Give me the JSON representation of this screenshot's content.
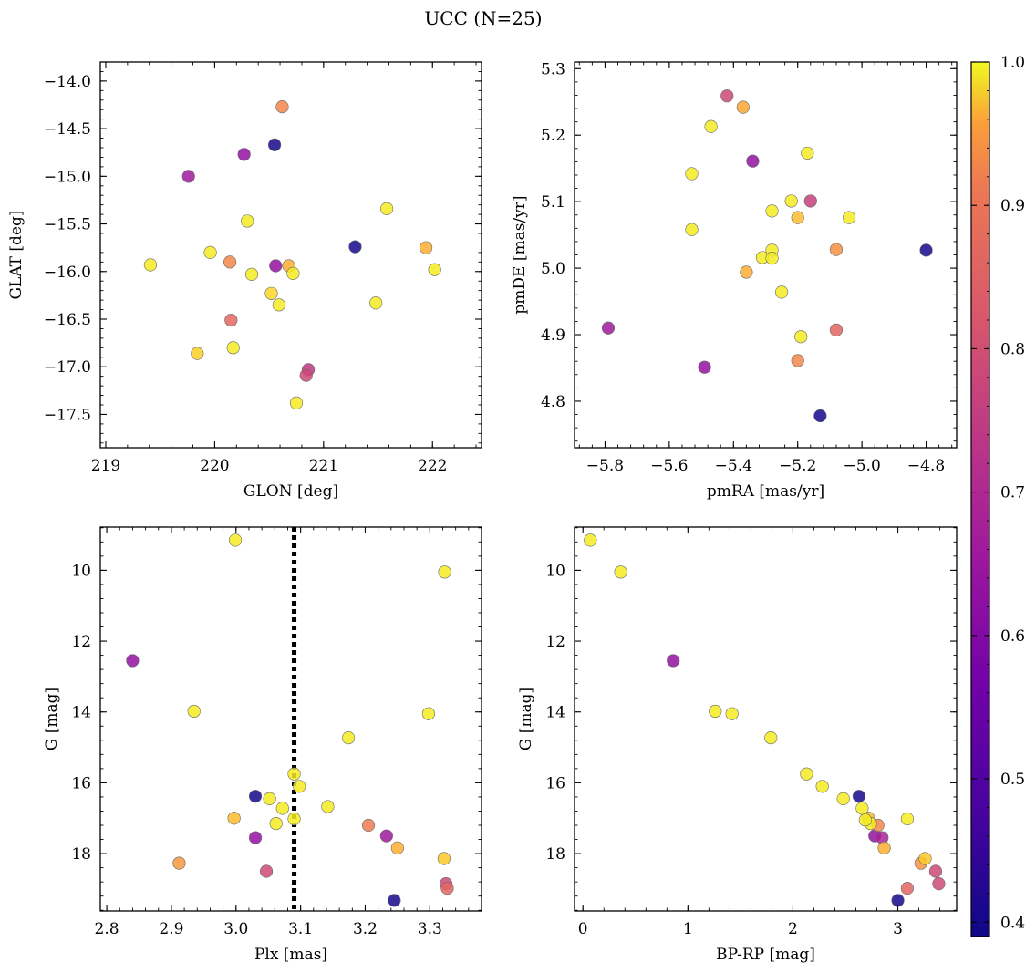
{
  "figure": {
    "title": "UCC (N=25)"
  },
  "colorbar": {
    "cmap": "plasma",
    "range": [
      0.39,
      1.0
    ],
    "ticks": [
      0.4,
      0.5,
      0.6,
      0.7,
      0.8,
      0.9,
      1.0
    ],
    "tick_labels": [
      "0.4",
      "0.5",
      "0.6",
      "0.7",
      "0.8",
      "0.9",
      "1.0"
    ]
  },
  "chart_data": [
    {
      "type": "scatter",
      "id": "glon-glat",
      "xlabel": "GLON [deg]",
      "ylabel": "GLAT [deg]",
      "xlim": [
        218.95,
        222.45
      ],
      "ylim": [
        -17.85,
        -13.8
      ],
      "xticks": [
        219,
        220,
        221,
        222
      ],
      "xtick_labels": [
        "219",
        "220",
        "221",
        "222"
      ],
      "yticks": [
        -14.0,
        -14.5,
        -15.0,
        -15.5,
        -16.0,
        -16.5,
        -17.0,
        -17.5
      ],
      "ytick_labels": [
        "−14.0",
        "−14.5",
        "−15.0",
        "−15.5",
        "−16.0",
        "−16.5",
        "−17.0",
        "−17.5"
      ],
      "points": [
        {
          "x": 220.55,
          "y": -14.67,
          "c": 0.4
        },
        {
          "x": 221.29,
          "y": -15.74,
          "c": 0.4
        },
        {
          "x": 220.27,
          "y": -14.77,
          "c": 0.58
        },
        {
          "x": 219.76,
          "y": -15.0,
          "c": 0.6
        },
        {
          "x": 220.56,
          "y": -15.94,
          "c": 0.58
        },
        {
          "x": 220.86,
          "y": -17.03,
          "c": 0.66
        },
        {
          "x": 220.84,
          "y": -17.09,
          "c": 0.7
        },
        {
          "x": 220.15,
          "y": -16.51,
          "c": 0.76
        },
        {
          "x": 220.62,
          "y": -14.27,
          "c": 0.82
        },
        {
          "x": 220.14,
          "y": -15.9,
          "c": 0.82
        },
        {
          "x": 220.68,
          "y": -15.94,
          "c": 0.89
        },
        {
          "x": 221.94,
          "y": -15.75,
          "c": 0.89
        },
        {
          "x": 219.84,
          "y": -16.86,
          "c": 0.94
        },
        {
          "x": 220.52,
          "y": -16.23,
          "c": 0.95
        },
        {
          "x": 219.41,
          "y": -15.93,
          "c": 0.98
        },
        {
          "x": 220.17,
          "y": -16.8,
          "c": 0.98
        },
        {
          "x": 220.3,
          "y": -15.47,
          "c": 0.98
        },
        {
          "x": 221.58,
          "y": -15.34,
          "c": 0.98
        },
        {
          "x": 221.48,
          "y": -16.33,
          "c": 0.98
        },
        {
          "x": 219.96,
          "y": -15.8,
          "c": 0.98
        },
        {
          "x": 220.34,
          "y": -16.03,
          "c": 0.98
        },
        {
          "x": 220.72,
          "y": -16.02,
          "c": 0.98
        },
        {
          "x": 220.59,
          "y": -16.35,
          "c": 0.98
        },
        {
          "x": 220.75,
          "y": -17.38,
          "c": 0.98
        },
        {
          "x": 222.02,
          "y": -15.98,
          "c": 0.98
        }
      ]
    },
    {
      "type": "scatter",
      "id": "pmra-pmde",
      "xlabel": "pmRA [mas/yr]",
      "ylabel": "pmDE [mas/yr]",
      "xlim": [
        -5.895,
        -4.705
      ],
      "ylim": [
        4.73,
        5.31
      ],
      "xticks": [
        -5.8,
        -5.6,
        -5.4,
        -5.2,
        -5.0,
        -4.8
      ],
      "xtick_labels": [
        "−5.8",
        "−5.6",
        "−5.4",
        "−5.2",
        "−5.0",
        "−4.8"
      ],
      "yticks": [
        4.8,
        4.9,
        5.0,
        5.1,
        5.2,
        5.3
      ],
      "ytick_labels": [
        "4.8",
        "4.9",
        "5.0",
        "5.1",
        "5.2",
        "5.3"
      ],
      "points": [
        {
          "x": -5.13,
          "y": 4.778,
          "c": 0.4
        },
        {
          "x": -4.8,
          "y": 5.027,
          "c": 0.4
        },
        {
          "x": -5.34,
          "y": 5.161,
          "c": 0.58
        },
        {
          "x": -5.79,
          "y": 4.91,
          "c": 0.6
        },
        {
          "x": -5.49,
          "y": 4.851,
          "c": 0.58
        },
        {
          "x": -5.16,
          "y": 5.101,
          "c": 0.68
        },
        {
          "x": -5.42,
          "y": 5.259,
          "c": 0.7
        },
        {
          "x": -5.08,
          "y": 4.907,
          "c": 0.76
        },
        {
          "x": -5.2,
          "y": 4.861,
          "c": 0.82
        },
        {
          "x": -5.08,
          "y": 5.028,
          "c": 0.84
        },
        {
          "x": -5.37,
          "y": 5.242,
          "c": 0.88
        },
        {
          "x": -5.36,
          "y": 4.994,
          "c": 0.89
        },
        {
          "x": -5.2,
          "y": 5.076,
          "c": 0.91
        },
        {
          "x": -5.47,
          "y": 5.213,
          "c": 0.98
        },
        {
          "x": -5.53,
          "y": 5.142,
          "c": 0.98
        },
        {
          "x": -5.53,
          "y": 5.058,
          "c": 0.98
        },
        {
          "x": -5.17,
          "y": 5.173,
          "c": 0.98
        },
        {
          "x": -5.22,
          "y": 5.101,
          "c": 0.98
        },
        {
          "x": -5.28,
          "y": 5.086,
          "c": 0.98
        },
        {
          "x": -5.04,
          "y": 5.076,
          "c": 0.98
        },
        {
          "x": -5.28,
          "y": 5.027,
          "c": 0.98
        },
        {
          "x": -5.31,
          "y": 5.016,
          "c": 0.98
        },
        {
          "x": -5.28,
          "y": 5.015,
          "c": 0.98
        },
        {
          "x": -5.25,
          "y": 4.964,
          "c": 0.98
        },
        {
          "x": -5.19,
          "y": 4.897,
          "c": 0.98
        }
      ]
    },
    {
      "type": "scatter",
      "id": "plx-g",
      "xlabel": "Plx [mas]",
      "ylabel": "G [mag]",
      "xlim": [
        2.79,
        3.38
      ],
      "ylim": [
        19.62,
        8.78
      ],
      "xticks": [
        2.8,
        2.9,
        3.0,
        3.1,
        3.2,
        3.3
      ],
      "xtick_labels": [
        "2.8",
        "2.9",
        "3.0",
        "3.1",
        "3.2",
        "3.3"
      ],
      "yticks": [
        10,
        12,
        14,
        16,
        18
      ],
      "ytick_labels": [
        "10",
        "12",
        "14",
        "16",
        "18"
      ],
      "vline": 3.09,
      "points": [
        {
          "x": 3.03,
          "y": 16.38,
          "c": 0.4
        },
        {
          "x": 3.245,
          "y": 19.32,
          "c": 0.4
        },
        {
          "x": 2.84,
          "y": 12.55,
          "c": 0.58
        },
        {
          "x": 3.03,
          "y": 17.55,
          "c": 0.58
        },
        {
          "x": 3.233,
          "y": 17.5,
          "c": 0.6
        },
        {
          "x": 3.047,
          "y": 18.5,
          "c": 0.7
        },
        {
          "x": 3.325,
          "y": 18.85,
          "c": 0.7
        },
        {
          "x": 3.327,
          "y": 18.98,
          "c": 0.76
        },
        {
          "x": 3.205,
          "y": 17.2,
          "c": 0.8
        },
        {
          "x": 2.912,
          "y": 18.27,
          "c": 0.85
        },
        {
          "x": 3.25,
          "y": 17.84,
          "c": 0.89
        },
        {
          "x": 2.997,
          "y": 17.0,
          "c": 0.91
        },
        {
          "x": 3.322,
          "y": 18.14,
          "c": 0.93
        },
        {
          "x": 2.999,
          "y": 9.15,
          "c": 0.98
        },
        {
          "x": 3.323,
          "y": 10.05,
          "c": 0.98
        },
        {
          "x": 2.935,
          "y": 13.98,
          "c": 0.98
        },
        {
          "x": 3.298,
          "y": 14.05,
          "c": 0.98
        },
        {
          "x": 3.174,
          "y": 14.73,
          "c": 0.98
        },
        {
          "x": 3.09,
          "y": 15.75,
          "c": 0.98
        },
        {
          "x": 3.098,
          "y": 16.1,
          "c": 0.98
        },
        {
          "x": 3.052,
          "y": 16.45,
          "c": 0.98
        },
        {
          "x": 3.142,
          "y": 16.67,
          "c": 0.98
        },
        {
          "x": 3.072,
          "y": 16.72,
          "c": 0.98
        },
        {
          "x": 3.09,
          "y": 17.02,
          "c": 0.98
        },
        {
          "x": 3.062,
          "y": 17.15,
          "c": 0.98
        }
      ]
    },
    {
      "type": "scatter",
      "id": "bprp-g",
      "xlabel": "BP-RP [mag]",
      "ylabel": "G [mag]",
      "xlim": [
        -0.08,
        3.56
      ],
      "ylim": [
        19.62,
        8.78
      ],
      "xticks": [
        0,
        1,
        2,
        3
      ],
      "xtick_labels": [
        "0",
        "1",
        "2",
        "3"
      ],
      "yticks": [
        10,
        12,
        14,
        16,
        18
      ],
      "ytick_labels": [
        "10",
        "12",
        "14",
        "16",
        "18"
      ],
      "points": [
        {
          "x": 2.63,
          "y": 16.38,
          "c": 0.4
        },
        {
          "x": 3.0,
          "y": 19.32,
          "c": 0.4
        },
        {
          "x": 0.86,
          "y": 12.55,
          "c": 0.58
        },
        {
          "x": 2.78,
          "y": 17.5,
          "c": 0.58
        },
        {
          "x": 2.85,
          "y": 17.55,
          "c": 0.62
        },
        {
          "x": 3.36,
          "y": 18.5,
          "c": 0.7
        },
        {
          "x": 3.39,
          "y": 18.85,
          "c": 0.7
        },
        {
          "x": 3.09,
          "y": 18.98,
          "c": 0.76
        },
        {
          "x": 2.81,
          "y": 17.2,
          "c": 0.82
        },
        {
          "x": 3.22,
          "y": 18.27,
          "c": 0.85
        },
        {
          "x": 2.87,
          "y": 17.84,
          "c": 0.89
        },
        {
          "x": 2.72,
          "y": 17.0,
          "c": 0.91
        },
        {
          "x": 3.26,
          "y": 18.14,
          "c": 0.93
        },
        {
          "x": 0.07,
          "y": 9.15,
          "c": 0.98
        },
        {
          "x": 0.36,
          "y": 10.05,
          "c": 0.98
        },
        {
          "x": 1.26,
          "y": 13.98,
          "c": 0.98
        },
        {
          "x": 1.42,
          "y": 14.05,
          "c": 0.98
        },
        {
          "x": 1.79,
          "y": 14.73,
          "c": 0.98
        },
        {
          "x": 2.13,
          "y": 15.75,
          "c": 0.98
        },
        {
          "x": 2.28,
          "y": 16.1,
          "c": 0.98
        },
        {
          "x": 2.48,
          "y": 16.45,
          "c": 0.98
        },
        {
          "x": 2.66,
          "y": 16.72,
          "c": 0.98
        },
        {
          "x": 3.09,
          "y": 17.02,
          "c": 0.98
        },
        {
          "x": 2.74,
          "y": 17.15,
          "c": 0.98
        },
        {
          "x": 2.69,
          "y": 17.05,
          "c": 0.98
        }
      ]
    }
  ]
}
